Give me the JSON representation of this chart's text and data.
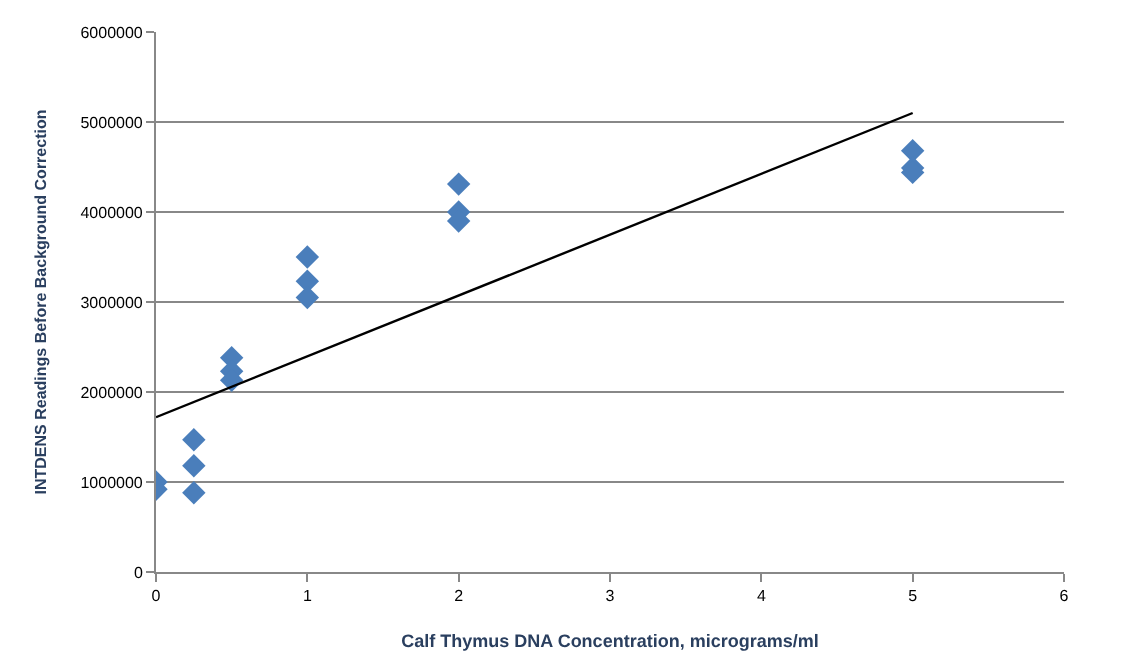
{
  "chart_data": {
    "type": "scatter",
    "xlabel": "Calf Thymus DNA Concentration, micrograms/ml",
    "ylabel": "INTDENS Readings Before Background Correction",
    "x": [
      0,
      0,
      0.25,
      0.25,
      0.25,
      0.5,
      0.5,
      0.5,
      1,
      1,
      1,
      2,
      2,
      2,
      5,
      5,
      5
    ],
    "series": [
      {
        "color": "#4a7ebb",
        "marker": "diamond",
        "values": [
          1000000,
          920000,
          1470000,
          1180000,
          880000,
          2380000,
          2230000,
          2130000,
          3500000,
          3230000,
          3050000,
          4310000,
          4000000,
          3900000,
          4680000,
          4490000,
          4440000
        ]
      },
      {
        "type": "line",
        "marker": "none",
        "color": "#000000",
        "x": [
          0,
          5
        ],
        "values": [
          1720000,
          5100000
        ]
      }
    ],
    "grid": "y",
    "legend": false,
    "xlim": [
      0,
      6
    ],
    "xticks": [
      0,
      1,
      2,
      3,
      4,
      5,
      6
    ],
    "ylim": [
      0,
      6000000
    ],
    "yticks": [
      0,
      1000000,
      2000000,
      3000000,
      4000000,
      5000000,
      6000000
    ]
  }
}
